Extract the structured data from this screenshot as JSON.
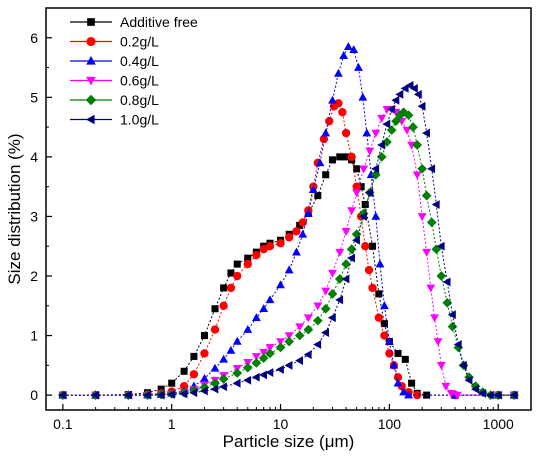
{
  "chart_data": {
    "type": "scatter",
    "title": "",
    "xlabel": "Particle size (μm)",
    "ylabel": "Size distribution (%)",
    "xscale": "log",
    "xlim": [
      0.07,
      2000
    ],
    "ylim": [
      -0.25,
      6.5
    ],
    "xticks": [
      "0.1",
      "1",
      "10",
      "100",
      "1000"
    ],
    "yticks": [
      "0",
      "1",
      "2",
      "3",
      "4",
      "5",
      "6"
    ],
    "legend_position": "top-left",
    "series": [
      {
        "name": "Additive free",
        "color": "#000000",
        "marker": "square",
        "points": [
          [
            0.1,
            0
          ],
          [
            0.2,
            0
          ],
          [
            0.4,
            0.01
          ],
          [
            0.6,
            0.04
          ],
          [
            0.8,
            0.1
          ],
          [
            1,
            0.2
          ],
          [
            1.3,
            0.4
          ],
          [
            1.6,
            0.65
          ],
          [
            2,
            1.0
          ],
          [
            2.5,
            1.45
          ],
          [
            3,
            1.8
          ],
          [
            3.5,
            2.05
          ],
          [
            4,
            2.2
          ],
          [
            5,
            2.3
          ],
          [
            6,
            2.4
          ],
          [
            7,
            2.5
          ],
          [
            8,
            2.55
          ],
          [
            10,
            2.6
          ],
          [
            12,
            2.7
          ],
          [
            15,
            2.85
          ],
          [
            18,
            3.05
          ],
          [
            22,
            3.35
          ],
          [
            26,
            3.7
          ],
          [
            30,
            3.95
          ],
          [
            35,
            4.0
          ],
          [
            40,
            4.0
          ],
          [
            45,
            3.95
          ],
          [
            50,
            3.8
          ],
          [
            55,
            3.5
          ],
          [
            60,
            3.2
          ],
          [
            70,
            2.5
          ],
          [
            80,
            1.7
          ],
          [
            90,
            1.2
          ],
          [
            100,
            0.9
          ],
          [
            120,
            0.7
          ],
          [
            140,
            0.6
          ],
          [
            160,
            0.2
          ],
          [
            180,
            0.03
          ],
          [
            220,
            0
          ],
          [
            400,
            0
          ],
          [
            1000,
            0
          ],
          [
            1400,
            0
          ]
        ]
      },
      {
        "name": "0.2g/L",
        "color": "#ff0000",
        "marker": "circle",
        "points": [
          [
            0.1,
            0
          ],
          [
            0.2,
            0
          ],
          [
            0.4,
            0
          ],
          [
            0.6,
            0.01
          ],
          [
            0.8,
            0.03
          ],
          [
            1,
            0.06
          ],
          [
            1.3,
            0.15
          ],
          [
            1.6,
            0.35
          ],
          [
            2,
            0.7
          ],
          [
            2.5,
            1.1
          ],
          [
            3,
            1.5
          ],
          [
            3.5,
            1.8
          ],
          [
            4,
            2.0
          ],
          [
            5,
            2.2
          ],
          [
            6,
            2.35
          ],
          [
            7,
            2.45
          ],
          [
            8,
            2.5
          ],
          [
            10,
            2.55
          ],
          [
            12,
            2.65
          ],
          [
            14,
            2.75
          ],
          [
            16,
            2.9
          ],
          [
            18,
            3.1
          ],
          [
            20,
            3.5
          ],
          [
            22,
            3.9
          ],
          [
            25,
            4.3
          ],
          [
            28,
            4.6
          ],
          [
            31,
            4.85
          ],
          [
            34,
            4.9
          ],
          [
            37,
            4.75
          ],
          [
            40,
            4.4
          ],
          [
            45,
            4.0
          ],
          [
            50,
            3.5
          ],
          [
            55,
            3.0
          ],
          [
            60,
            2.5
          ],
          [
            65,
            2.1
          ],
          [
            70,
            1.8
          ],
          [
            80,
            1.3
          ],
          [
            90,
            1.0
          ],
          [
            100,
            0.7
          ],
          [
            110,
            0.5
          ],
          [
            120,
            0.3
          ],
          [
            130,
            0.15
          ],
          [
            150,
            0.05
          ],
          [
            180,
            0
          ],
          [
            400,
            0
          ],
          [
            1000,
            0
          ],
          [
            1400,
            0
          ]
        ]
      },
      {
        "name": "0.4g/L",
        "color": "#0000ff",
        "marker": "triangle-up",
        "points": [
          [
            0.1,
            0
          ],
          [
            0.2,
            0
          ],
          [
            0.4,
            0
          ],
          [
            0.6,
            0
          ],
          [
            0.8,
            0.01
          ],
          [
            1,
            0.03
          ],
          [
            1.3,
            0.07
          ],
          [
            1.6,
            0.15
          ],
          [
            2,
            0.28
          ],
          [
            2.5,
            0.45
          ],
          [
            3,
            0.6
          ],
          [
            3.5,
            0.75
          ],
          [
            4,
            0.9
          ],
          [
            5,
            1.1
          ],
          [
            6,
            1.3
          ],
          [
            7,
            1.45
          ],
          [
            8,
            1.6
          ],
          [
            10,
            1.85
          ],
          [
            12,
            2.1
          ],
          [
            14,
            2.4
          ],
          [
            16,
            2.7
          ],
          [
            18,
            3.05
          ],
          [
            20,
            3.45
          ],
          [
            23,
            3.9
          ],
          [
            26,
            4.4
          ],
          [
            30,
            4.95
          ],
          [
            34,
            5.4
          ],
          [
            38,
            5.7
          ],
          [
            42,
            5.85
          ],
          [
            47,
            5.8
          ],
          [
            52,
            5.5
          ],
          [
            57,
            5.0
          ],
          [
            62,
            4.4
          ],
          [
            68,
            3.7
          ],
          [
            75,
            3.0
          ],
          [
            82,
            2.2
          ],
          [
            90,
            1.5
          ],
          [
            100,
            0.9
          ],
          [
            110,
            0.5
          ],
          [
            120,
            0.2
          ],
          [
            135,
            0.05
          ],
          [
            150,
            0
          ],
          [
            400,
            0
          ],
          [
            1000,
            0
          ],
          [
            1400,
            0
          ]
        ]
      },
      {
        "name": "0.6g/L",
        "color": "#ff00ff",
        "marker": "triangle-down",
        "points": [
          [
            0.1,
            0
          ],
          [
            0.2,
            0
          ],
          [
            0.4,
            0
          ],
          [
            0.6,
            0
          ],
          [
            0.8,
            0.01
          ],
          [
            1,
            0.02
          ],
          [
            1.3,
            0.05
          ],
          [
            1.6,
            0.1
          ],
          [
            2,
            0.17
          ],
          [
            2.5,
            0.25
          ],
          [
            3,
            0.33
          ],
          [
            4,
            0.45
          ],
          [
            5,
            0.55
          ],
          [
            6,
            0.65
          ],
          [
            7,
            0.72
          ],
          [
            8,
            0.8
          ],
          [
            10,
            0.9
          ],
          [
            12,
            1.0
          ],
          [
            15,
            1.15
          ],
          [
            18,
            1.3
          ],
          [
            22,
            1.5
          ],
          [
            26,
            1.75
          ],
          [
            30,
            2.05
          ],
          [
            35,
            2.4
          ],
          [
            40,
            2.75
          ],
          [
            45,
            3.1
          ],
          [
            50,
            3.4
          ],
          [
            58,
            3.8
          ],
          [
            66,
            4.1
          ],
          [
            75,
            4.4
          ],
          [
            85,
            4.65
          ],
          [
            95,
            4.8
          ],
          [
            105,
            4.8
          ],
          [
            115,
            4.75
          ],
          [
            130,
            4.6
          ],
          [
            145,
            4.45
          ],
          [
            160,
            4.2
          ],
          [
            180,
            3.7
          ],
          [
            200,
            3.0
          ],
          [
            220,
            2.4
          ],
          [
            240,
            1.8
          ],
          [
            260,
            1.3
          ],
          [
            280,
            0.9
          ],
          [
            300,
            0.5
          ],
          [
            330,
            0.15
          ],
          [
            370,
            0.03
          ],
          [
            420,
            0
          ],
          [
            1000,
            0
          ],
          [
            1400,
            0
          ]
        ]
      },
      {
        "name": "0.8g/L",
        "color": "#008000",
        "marker": "diamond",
        "points": [
          [
            0.1,
            0
          ],
          [
            0.2,
            0
          ],
          [
            0.4,
            0
          ],
          [
            0.6,
            0
          ],
          [
            0.8,
            0.01
          ],
          [
            1,
            0.02
          ],
          [
            1.3,
            0.04
          ],
          [
            1.6,
            0.08
          ],
          [
            2,
            0.13
          ],
          [
            2.5,
            0.2
          ],
          [
            3,
            0.27
          ],
          [
            4,
            0.37
          ],
          [
            5,
            0.46
          ],
          [
            6,
            0.54
          ],
          [
            7,
            0.62
          ],
          [
            8,
            0.7
          ],
          [
            10,
            0.8
          ],
          [
            12,
            0.9
          ],
          [
            15,
            1.0
          ],
          [
            18,
            1.1
          ],
          [
            22,
            1.25
          ],
          [
            26,
            1.45
          ],
          [
            30,
            1.7
          ],
          [
            35,
            1.95
          ],
          [
            40,
            2.2
          ],
          [
            45,
            2.45
          ],
          [
            50,
            2.7
          ],
          [
            58,
            3.05
          ],
          [
            66,
            3.4
          ],
          [
            75,
            3.7
          ],
          [
            85,
            4.0
          ],
          [
            95,
            4.25
          ],
          [
            105,
            4.45
          ],
          [
            115,
            4.6
          ],
          [
            125,
            4.7
          ],
          [
            135,
            4.75
          ],
          [
            150,
            4.7
          ],
          [
            165,
            4.5
          ],
          [
            180,
            4.2
          ],
          [
            200,
            3.8
          ],
          [
            220,
            3.35
          ],
          [
            245,
            2.9
          ],
          [
            270,
            2.45
          ],
          [
            300,
            2.0
          ],
          [
            340,
            1.55
          ],
          [
            380,
            1.15
          ],
          [
            430,
            0.8
          ],
          [
            480,
            0.5
          ],
          [
            540,
            0.3
          ],
          [
            620,
            0.15
          ],
          [
            720,
            0.05
          ],
          [
            850,
            0
          ],
          [
            1000,
            0
          ],
          [
            1400,
            0
          ]
        ]
      },
      {
        "name": "1.0g/L",
        "color": "#000080",
        "marker": "triangle-left",
        "points": [
          [
            0.1,
            0
          ],
          [
            0.2,
            0
          ],
          [
            0.4,
            0
          ],
          [
            0.6,
            0
          ],
          [
            0.8,
            0
          ],
          [
            1,
            0.01
          ],
          [
            1.3,
            0.02
          ],
          [
            1.6,
            0.04
          ],
          [
            2,
            0.07
          ],
          [
            2.5,
            0.1
          ],
          [
            3,
            0.14
          ],
          [
            4,
            0.2
          ],
          [
            5,
            0.25
          ],
          [
            6,
            0.3
          ],
          [
            7,
            0.34
          ],
          [
            8,
            0.38
          ],
          [
            10,
            0.43
          ],
          [
            12,
            0.5
          ],
          [
            15,
            0.58
          ],
          [
            18,
            0.68
          ],
          [
            22,
            0.85
          ],
          [
            26,
            1.05
          ],
          [
            30,
            1.3
          ],
          [
            35,
            1.6
          ],
          [
            40,
            1.95
          ],
          [
            45,
            2.3
          ],
          [
            50,
            2.6
          ],
          [
            58,
            3.0
          ],
          [
            66,
            3.4
          ],
          [
            75,
            3.8
          ],
          [
            85,
            4.2
          ],
          [
            95,
            4.55
          ],
          [
            105,
            4.8
          ],
          [
            115,
            4.95
          ],
          [
            125,
            5.05
          ],
          [
            140,
            5.15
          ],
          [
            155,
            5.2
          ],
          [
            170,
            5.15
          ],
          [
            185,
            5.05
          ],
          [
            200,
            4.85
          ],
          [
            220,
            4.4
          ],
          [
            245,
            3.8
          ],
          [
            270,
            3.2
          ],
          [
            300,
            2.5
          ],
          [
            340,
            1.9
          ],
          [
            380,
            1.35
          ],
          [
            430,
            0.85
          ],
          [
            480,
            0.5
          ],
          [
            540,
            0.25
          ],
          [
            620,
            0.1
          ],
          [
            720,
            0.03
          ],
          [
            850,
            0
          ],
          [
            1000,
            0
          ],
          [
            1400,
            0
          ]
        ]
      }
    ]
  }
}
